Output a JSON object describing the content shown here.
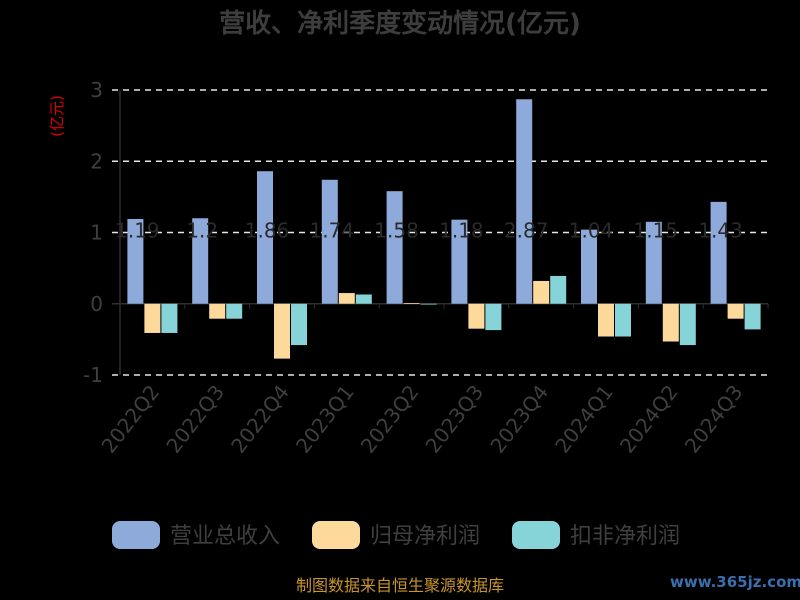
{
  "chart_data": {
    "type": "bar",
    "title": "营收、净利季度变动情况(亿元)",
    "unit_label": "(亿元)",
    "categories": [
      "2022Q2",
      "2022Q3",
      "2022Q4",
      "2023Q1",
      "2023Q2",
      "2023Q3",
      "2023Q4",
      "2024Q1",
      "2024Q2",
      "2024Q3"
    ],
    "series": [
      {
        "name": "营业总收入",
        "color": "#8eaadb",
        "values": [
          1.19,
          1.2,
          1.86,
          1.74,
          1.58,
          1.18,
          2.87,
          1.04,
          1.15,
          1.43
        ],
        "labels": [
          "1.19",
          "1.2",
          "1.86",
          "1.74",
          "1.58",
          "1.18",
          "2.87",
          "1.04",
          "1.15",
          "1.43"
        ]
      },
      {
        "name": "归母净利润",
        "color": "#fdd99b",
        "values": [
          -0.41,
          -0.21,
          -0.77,
          0.15,
          0.01,
          -0.35,
          0.32,
          -0.46,
          -0.53,
          -0.21
        ]
      },
      {
        "name": "扣非净利润",
        "color": "#86d4d8",
        "values": [
          -0.41,
          -0.21,
          -0.58,
          0.13,
          -0.01,
          -0.37,
          0.39,
          -0.46,
          -0.58,
          -0.36
        ]
      }
    ],
    "ylim": [
      -1,
      3
    ],
    "yticks": [
      "3",
      "2",
      "1",
      "0",
      "-1"
    ],
    "grid": true,
    "legend_position": "bottom"
  },
  "footer": {
    "source": "制图数据来自恒生聚源数据库",
    "watermark": "www.365jz.com"
  }
}
